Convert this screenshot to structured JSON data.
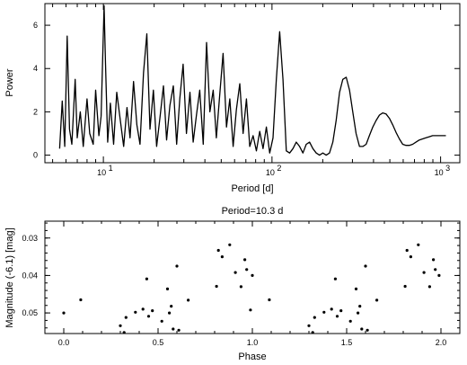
{
  "chart_data": [
    {
      "type": "line",
      "title": "",
      "xlabel": "Period [d]",
      "ylabel": "Power",
      "xscale": "log",
      "xlim": [
        4.5,
        1300
      ],
      "ylim": [
        -0.35,
        7
      ],
      "x_major_ticks": [
        {
          "value": 10,
          "label": "10",
          "exp": "1"
        },
        {
          "value": 100,
          "label": "10",
          "exp": "2"
        },
        {
          "value": 1000,
          "label": "10",
          "exp": "3"
        }
      ],
      "y_ticks": [
        0,
        2,
        4,
        6
      ],
      "grid": false,
      "series": [
        {
          "x": [
            5.5,
            5.7,
            5.9,
            6.1,
            6.3,
            6.5,
            6.8,
            7.0,
            7.3,
            7.6,
            8.0,
            8.3,
            8.7,
            9.0,
            9.4,
            9.7,
            10.1,
            10.3,
            10.6,
            11.0,
            11.5,
            12.0,
            12.6,
            13.2,
            13.8,
            14.4,
            15.1,
            15.8,
            16.5,
            17.3,
            18.1,
            18.9,
            19.8,
            20.7,
            21.7,
            22.7,
            23.7,
            24.8,
            26.0,
            27.2,
            28.4,
            29.7,
            31.1,
            32.6,
            34.1,
            35.7,
            37.3,
            39.1,
            40.9,
            42.8,
            44.8,
            46.8,
            49.0,
            51.3,
            53.7,
            56.2,
            58.8,
            61.5,
            64.4,
            67.4,
            70.5,
            73.8,
            77.2,
            80.8,
            84.6,
            88.5,
            92.6,
            96.9,
            101.4,
            106.1,
            111.1,
            116.2,
            121.6,
            127.3,
            133.2,
            139.4,
            145.8,
            152.6,
            159.7,
            167.1,
            174.9,
            183.0,
            191.5,
            200.4,
            209.7,
            219.4,
            229.6,
            240.3,
            251.5,
            263.1,
            275.4,
            288.2,
            301.5,
            315.5,
            330.2,
            345.5,
            361.6,
            378.3,
            395.9,
            414.3,
            433.6,
            453.7,
            474.7,
            496.8,
            519.9,
            544.0,
            569.3,
            595.7,
            623.4,
            652.3,
            682.6,
            714.3,
            747.5,
            782.2,
            818.5,
            856.6,
            896.3,
            938.0,
            981.6,
            1027.2,
            1074.9
          ],
          "y": [
            0.3,
            2.5,
            0.4,
            5.5,
            1.2,
            0.5,
            3.5,
            0.8,
            2.0,
            0.4,
            2.6,
            1.0,
            0.5,
            3.0,
            0.9,
            1.8,
            6.9,
            4.2,
            0.6,
            2.4,
            0.5,
            2.9,
            1.6,
            0.4,
            2.2,
            0.8,
            3.4,
            1.4,
            0.5,
            3.8,
            5.6,
            1.2,
            3.0,
            0.4,
            1.8,
            3.2,
            0.7,
            2.3,
            3.2,
            0.5,
            2.6,
            4.2,
            1.0,
            2.9,
            0.6,
            1.9,
            3.0,
            0.5,
            5.2,
            2.0,
            3.0,
            0.8,
            2.8,
            4.7,
            1.3,
            2.6,
            0.4,
            2.1,
            3.3,
            1.0,
            2.6,
            0.4,
            0.9,
            0.2,
            1.1,
            0.3,
            1.3,
            0.1,
            0.8,
            3.5,
            5.7,
            3.5,
            0.2,
            0.1,
            0.3,
            0.6,
            0.4,
            0.1,
            0.5,
            0.6,
            0.3,
            0.1,
            0.0,
            0.1,
            0.0,
            0.1,
            0.6,
            1.6,
            2.9,
            3.5,
            3.6,
            3.0,
            2.0,
            1.0,
            0.4,
            0.4,
            0.5,
            0.9,
            1.3,
            1.6,
            1.85,
            1.95,
            1.9,
            1.7,
            1.4,
            1.05,
            0.75,
            0.5,
            0.45,
            0.45,
            0.5,
            0.6,
            0.7,
            0.75,
            0.8,
            0.85,
            0.9,
            0.9,
            0.9,
            0.9,
            0.9
          ]
        }
      ]
    },
    {
      "type": "scatter",
      "title": "Period=10.3 d",
      "xlabel": "Phase",
      "ylabel": "Magnitude (-6.1) [mag]",
      "xlim": [
        -0.1,
        2.1
      ],
      "ylim": [
        0.0555,
        0.0255
      ],
      "y_inverted": true,
      "x_ticks": [
        {
          "value": 0.0,
          "label": "0.0"
        },
        {
          "value": 0.5,
          "label": "0.5"
        },
        {
          "value": 1.0,
          "label": "1.0"
        },
        {
          "value": 1.5,
          "label": "1.5"
        },
        {
          "value": 2.0,
          "label": "2.0"
        }
      ],
      "y_ticks": [
        {
          "value": 0.03,
          "label": "0.03"
        },
        {
          "value": 0.04,
          "label": "0.04"
        },
        {
          "value": 0.05,
          "label": "0.05"
        }
      ],
      "grid": false,
      "series": [
        {
          "x": [
            0.0,
            0.09,
            0.3,
            0.32,
            0.33,
            0.38,
            0.42,
            0.44,
            0.45,
            0.47,
            0.52,
            0.55,
            0.56,
            0.57,
            0.58,
            0.6,
            0.61,
            0.66,
            0.81,
            0.82,
            0.84,
            0.88,
            0.91,
            0.94,
            0.96,
            0.97,
            0.99,
            1.0,
            1.09,
            1.3,
            1.32,
            1.33,
            1.38,
            1.42,
            1.44,
            1.45,
            1.47,
            1.52,
            1.55,
            1.56,
            1.57,
            1.58,
            1.6,
            1.61,
            1.66,
            1.81,
            1.82,
            1.84,
            1.88,
            1.91,
            1.94,
            1.96,
            1.97,
            1.99
          ],
          "y": [
            0.05,
            0.0465,
            0.0534,
            0.0552,
            0.0512,
            0.0498,
            0.049,
            0.0409,
            0.0509,
            0.0494,
            0.0522,
            0.0436,
            0.05,
            0.0482,
            0.0543,
            0.0375,
            0.0546,
            0.0466,
            0.0429,
            0.0333,
            0.035,
            0.0318,
            0.0392,
            0.043,
            0.0358,
            0.0384,
            0.0492,
            0.04,
            0.0465,
            0.0534,
            0.0552,
            0.0512,
            0.0498,
            0.049,
            0.0409,
            0.0509,
            0.0494,
            0.0522,
            0.0436,
            0.05,
            0.0482,
            0.0543,
            0.0375,
            0.0546,
            0.0466,
            0.0429,
            0.0333,
            0.035,
            0.0318,
            0.0392,
            0.043,
            0.0358,
            0.0384,
            0.04
          ]
        }
      ]
    }
  ]
}
